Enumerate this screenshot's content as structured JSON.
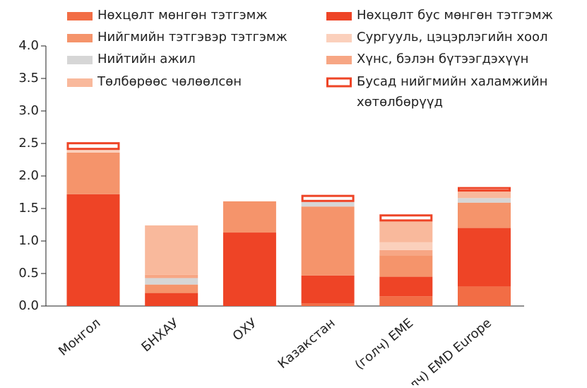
{
  "chart_data": {
    "type": "stacked_bar",
    "categories": [
      "Монгол",
      "БНХАУ",
      "ОХУ",
      "Казакстан",
      "(голч) EME",
      "(голч) EMD Europe"
    ],
    "series": [
      {
        "name": "Нөхцөлт мөнгөн тэтгэмж",
        "color": "#f26d45",
        "values": [
          0,
          0,
          0,
          0.04,
          0.15,
          0.3
        ]
      },
      {
        "name": "Нөхцөлт бус мөнгөн тэтгэмж",
        "color": "#ee4426",
        "values": [
          1.72,
          0.2,
          1.13,
          0.43,
          0.3,
          0.9
        ]
      },
      {
        "name": "Нийгмийн тэтгэвэр тэтгэмж",
        "color": "#f5946b",
        "values": [
          0.64,
          0.13,
          0.48,
          1.06,
          0.33,
          0.39
        ]
      },
      {
        "name": "Нийтийн ажил",
        "color": "#d6d6d6",
        "values": [
          0,
          0.1,
          0,
          0.07,
          0,
          0.07
        ]
      },
      {
        "name": "Хүнс, бэлэн бүтээгдэхүүн",
        "color": "#f7a684",
        "values": [
          0,
          0.05,
          0,
          0,
          0.08,
          0
        ]
      },
      {
        "name": "Сургууль, цэцэрлэгийн хоол",
        "color": "#fbd0bc",
        "values": [
          0.04,
          0,
          0,
          0,
          0.12,
          0
        ]
      },
      {
        "name": "Төлбөрөөс чөлөөлсөн",
        "color": "#f9b99c",
        "values": [
          0,
          0.76,
          0,
          0,
          0.32,
          0.1
        ]
      },
      {
        "name": "Бусад нийгмийн халамжийн хөтөлбөрүүд",
        "color": "#ee4426",
        "values": [
          0.12,
          0,
          0,
          0.11,
          0.11,
          0.07
        ]
      }
    ],
    "ylim": [
      0,
      4
    ],
    "yticks": [
      {
        "value": 0,
        "label": "0.0"
      },
      0.5,
      {
        "value": 1,
        "label": "1.0"
      },
      1.5,
      {
        "value": 2,
        "label": "2.0"
      },
      2.5,
      {
        "value": 3,
        "label": "3.0"
      },
      3.5,
      {
        "value": 4,
        "label": "4.0"
      }
    ]
  }
}
